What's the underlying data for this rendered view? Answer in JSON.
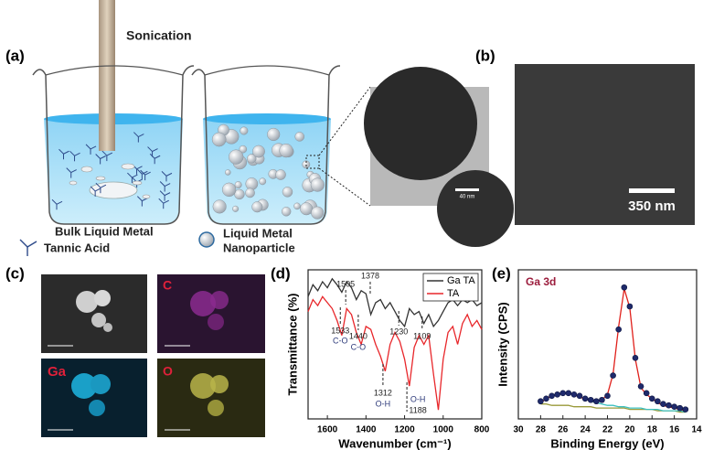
{
  "panel_a": {
    "label": "(a)",
    "sonication": "Sonication",
    "bulk": "Bulk Liquid Metal",
    "tannic": "Tannic Acid",
    "lmnp": [
      "Liquid Metal",
      "Nanoparticle"
    ],
    "scale": "40 nm"
  },
  "panel_b": {
    "label": "(b)",
    "scale": "350 nm"
  },
  "panel_c": {
    "label": "(c)",
    "maps": [
      "C",
      "Ga",
      "O"
    ]
  },
  "chart_data": [
    {
      "type": "line",
      "panel_label": "(d)",
      "xlabel": "Wavenumber (cm⁻¹)",
      "ylabel": "Transmittance (%)",
      "xlim": [
        1700,
        800
      ],
      "xticks": [
        1600,
        1400,
        1200,
        1000,
        800
      ],
      "ylim": [
        0,
        1
      ],
      "legend": "upper right",
      "x": [
        1700,
        1675,
        1650,
        1625,
        1600,
        1575,
        1550,
        1525,
        1500,
        1475,
        1450,
        1425,
        1400,
        1375,
        1350,
        1325,
        1300,
        1275,
        1250,
        1225,
        1200,
        1175,
        1150,
        1125,
        1100,
        1075,
        1050,
        1025,
        1000,
        975,
        950,
        925,
        900,
        875,
        850,
        825,
        800
      ],
      "series": [
        {
          "name": "Ga TA",
          "color": "#333333",
          "values": [
            0.82,
            0.9,
            0.86,
            0.92,
            0.88,
            0.94,
            0.9,
            0.85,
            0.92,
            0.88,
            0.8,
            0.86,
            0.84,
            0.7,
            0.78,
            0.8,
            0.74,
            0.78,
            0.72,
            0.66,
            0.62,
            0.74,
            0.7,
            0.72,
            0.64,
            0.7,
            0.62,
            0.66,
            0.72,
            0.78,
            0.8,
            0.76,
            0.8,
            0.78,
            0.8,
            0.76,
            0.78
          ]
        },
        {
          "name": "TA",
          "color": "#e8262a",
          "values": [
            0.72,
            0.8,
            0.76,
            0.82,
            0.78,
            0.74,
            0.66,
            0.56,
            0.74,
            0.7,
            0.58,
            0.5,
            0.62,
            0.6,
            0.5,
            0.42,
            0.32,
            0.5,
            0.58,
            0.52,
            0.4,
            0.22,
            0.48,
            0.56,
            0.5,
            0.56,
            0.3,
            0.06,
            0.4,
            0.58,
            0.62,
            0.5,
            0.64,
            0.7,
            0.62,
            0.66,
            0.6
          ]
        }
      ],
      "annotations": [
        {
          "x": 1505
        },
        {
          "x": 1378
        },
        {
          "x": 1533,
          "note": "C-O"
        },
        {
          "x": 1440,
          "note": "C-O"
        },
        {
          "x": 1230
        },
        {
          "x": 1109
        },
        {
          "x": 1312,
          "note": "O-H"
        },
        {
          "x": 1188,
          "note": "O-H"
        }
      ]
    },
    {
      "type": "line",
      "panel_label": "(e)",
      "title": "Ga 3d",
      "title_color": "#9b1c3c",
      "xlabel": "Binding Energy (eV)",
      "ylabel": "Intensity (CPS)",
      "xlim": [
        30,
        14
      ],
      "xticks": [
        30,
        28,
        26,
        24,
        22,
        20,
        18,
        16,
        14
      ],
      "ylim": [
        0,
        1.1
      ],
      "x": [
        28,
        27.5,
        27,
        26.5,
        26,
        25.5,
        25,
        24.5,
        24,
        23.5,
        23,
        22.5,
        22,
        21.5,
        21,
        20.5,
        20,
        19.5,
        19,
        18.5,
        18,
        17.5,
        17,
        16.5,
        16,
        15.5,
        15
      ],
      "series": [
        {
          "color": "#9a9a3a",
          "values": [
            0.11,
            0.11,
            0.1,
            0.1,
            0.1,
            0.1,
            0.09,
            0.09,
            0.09,
            0.09,
            0.08,
            0.08,
            0.08,
            0.08,
            0.08,
            0.08,
            0.07,
            0.07,
            0.07,
            0.07,
            0.07,
            0.06,
            0.06,
            0.06,
            0.06,
            0.05,
            0.05
          ]
        },
        {
          "color": "#3cc0c0",
          "values": [
            0.12,
            0.15,
            0.17,
            0.18,
            0.19,
            0.19,
            0.18,
            0.16,
            0.15,
            0.13,
            0.12,
            0.11,
            0.1,
            0.1,
            0.09,
            0.09,
            0.08,
            0.08,
            0.08,
            0.07,
            0.07,
            0.07,
            0.06,
            0.06,
            0.06,
            0.06,
            0.05
          ]
        },
        {
          "color": "#e0201b",
          "values": [
            0.12,
            0.15,
            0.17,
            0.18,
            0.19,
            0.19,
            0.18,
            0.16,
            0.15,
            0.13,
            0.13,
            0.14,
            0.18,
            0.33,
            0.68,
            0.96,
            0.82,
            0.44,
            0.23,
            0.18,
            0.15,
            0.12,
            0.1,
            0.09,
            0.08,
            0.07,
            0.06
          ]
        },
        {
          "color": "#1f2a6b",
          "style": "points",
          "values": [
            0.13,
            0.15,
            0.17,
            0.18,
            0.19,
            0.19,
            0.18,
            0.17,
            0.15,
            0.14,
            0.13,
            0.14,
            0.17,
            0.32,
            0.66,
            0.97,
            0.83,
            0.45,
            0.24,
            0.19,
            0.15,
            0.13,
            0.11,
            0.1,
            0.09,
            0.08,
            0.07
          ]
        }
      ]
    }
  ]
}
